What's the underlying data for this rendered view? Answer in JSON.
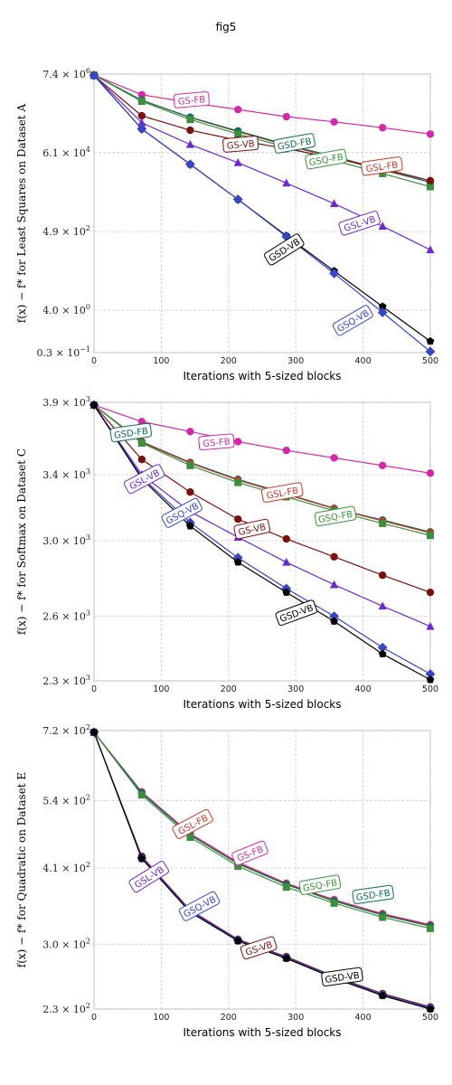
{
  "figure_title": "fig5",
  "chart_data": [
    {
      "type": "line",
      "title": "",
      "xlabel": "Iterations with 5-sized blocks",
      "ylabel": "f(x) − f* for Least Squares on Dataset A",
      "ylog": true,
      "xlim": [
        0,
        500
      ],
      "ylim": [
        0.3,
        7400000.0
      ],
      "x_ticks": [
        0,
        100,
        200,
        300,
        400,
        500
      ],
      "y_ticks": [
        {
          "value": 7400000.0,
          "mant": "7.4",
          "exp": "6"
        },
        {
          "value": 61000.0,
          "mant": "6.1",
          "exp": "4"
        },
        {
          "value": 490.0,
          "mant": "4.9",
          "exp": "2"
        },
        {
          "value": 4.0,
          "mant": "4.0",
          "exp": "0"
        },
        {
          "value": 0.3,
          "mant": "0.3",
          "exp": "−1"
        }
      ],
      "series": [
        {
          "name": "GS-FB",
          "color": "#d12aa6",
          "marker": "circle",
          "x": [
            0,
            71,
            143,
            214,
            286,
            357,
            429,
            500
          ],
          "y": [
            7000000.0,
            2100000.0,
            1300000.0,
            850000.0,
            550000.0,
            400000.0,
            280000.0,
            190000.0
          ]
        },
        {
          "name": "GSL-FB",
          "color": "#c0392b",
          "marker": "circle",
          "x": [
            0,
            71,
            143,
            214,
            286,
            357,
            429,
            500
          ],
          "y": [
            7000000.0,
            1500000.0,
            520000.0,
            220000.0,
            95000.0,
            45000.0,
            21000.0,
            10000.0
          ]
        },
        {
          "name": "GSD-FB",
          "color": "#0f6b5a",
          "marker": "circle",
          "x": [
            0,
            71,
            143,
            214,
            286,
            357,
            429,
            500
          ],
          "y": [
            7000000.0,
            1500000.0,
            530000.0,
            230000.0,
            100000.0,
            48000.0,
            22000.0,
            10000.0
          ]
        },
        {
          "name": "GSQ-FB",
          "color": "#3d8f3d",
          "marker": "square",
          "x": [
            0,
            71,
            143,
            214,
            286,
            357,
            429,
            500
          ],
          "y": [
            7000000.0,
            1400000.0,
            460000.0,
            190000.0,
            85000.0,
            38000.0,
            17000.0,
            7600.0
          ]
        },
        {
          "name": "GS-VB",
          "color": "#7a1010",
          "marker": "circle",
          "x": [
            0,
            71,
            143,
            214,
            286,
            357,
            429,
            500
          ],
          "y": [
            6800000.0,
            580000.0,
            240000.0,
            130000.0,
            78000.0,
            44000.0,
            23000.0,
            11000.0
          ]
        },
        {
          "name": "GSL-VB",
          "color": "#6c2bc9",
          "marker": "triangle",
          "x": [
            0,
            71,
            143,
            214,
            286,
            357,
            429,
            500
          ],
          "y": [
            6800000.0,
            380000.0,
            100000.0,
            33000.0,
            9500.0,
            2700.0,
            680.0,
            160.0
          ]
        },
        {
          "name": "GSD-VB",
          "color": "#000000",
          "marker": "pentagon",
          "x": [
            0,
            71,
            143,
            214,
            286,
            357,
            429,
            500
          ],
          "y": [
            6800000.0,
            260000.0,
            30000.0,
            3500.0,
            380.0,
            44.0,
            5.0,
            0.6
          ]
        },
        {
          "name": "GSQ-VB",
          "color": "#3946c4",
          "marker": "diamond",
          "x": [
            0,
            71,
            143,
            214,
            286,
            357,
            429,
            500
          ],
          "y": [
            6800000.0,
            260000.0,
            30000.0,
            3500.0,
            360.0,
            38.0,
            3.5,
            0.32
          ]
        }
      ],
      "labels": [
        {
          "text": "GS-FB",
          "series": "GS-FB",
          "x": 145,
          "y": 1500000.0,
          "angle": -5
        },
        {
          "text": "GSD-FB",
          "series": "GSD-FB",
          "x": 298,
          "y": 105000.0,
          "angle": -10
        },
        {
          "text": "GSQ-FB",
          "series": "GSQ-FB",
          "x": 345,
          "y": 40000.0,
          "angle": -10
        },
        {
          "text": "GSL-FB",
          "series": "GSL-FB",
          "x": 428,
          "y": 26000.0,
          "angle": -8
        },
        {
          "text": "GS-VB",
          "series": "GS-VB",
          "x": 218,
          "y": 100000.0,
          "angle": -5
        },
        {
          "text": "GSL-VB",
          "series": "GSL-VB",
          "x": 395,
          "y": 800.0,
          "angle": -18
        },
        {
          "text": "GSD-VB",
          "series": "GSD-VB",
          "x": 283,
          "y": 160.0,
          "angle": -32
        },
        {
          "text": "GSQ-VB",
          "series": "GSQ-VB",
          "x": 385,
          "y": 2.1,
          "angle": -30
        }
      ]
    },
    {
      "type": "line",
      "title": "",
      "xlabel": "Iterations with 5-sized blocks",
      "ylabel": "f(x) − f* for Softmax on Dataset C",
      "ylog": true,
      "xlim": [
        0,
        500
      ],
      "ylim": [
        2300,
        3900
      ],
      "x_ticks": [
        0,
        100,
        200,
        300,
        400,
        500
      ],
      "y_ticks": [
        {
          "value": 3900,
          "mant": "3.9",
          "exp": "3"
        },
        {
          "value": 3400,
          "mant": "3.4",
          "exp": "3"
        },
        {
          "value": 3000,
          "mant": "3.0",
          "exp": "3"
        },
        {
          "value": 2600,
          "mant": "2.6",
          "exp": "3"
        },
        {
          "value": 2300,
          "mant": "2.3",
          "exp": "3"
        }
      ],
      "series": [
        {
          "name": "GS-FB",
          "color": "#d12aa6",
          "marker": "circle",
          "x": [
            0,
            71,
            143,
            214,
            286,
            357,
            429,
            500
          ],
          "y": [
            3880,
            3760,
            3690,
            3620,
            3560,
            3510,
            3460,
            3410
          ]
        },
        {
          "name": "GSD-FB",
          "color": "#0f6b5a",
          "marker": "circle",
          "x": [
            0,
            71,
            143,
            214,
            286,
            357,
            429,
            500
          ],
          "y": [
            3880,
            3620,
            3480,
            3370,
            3280,
            3190,
            3120,
            3050
          ]
        },
        {
          "name": "GSL-FB",
          "color": "#c0392b",
          "marker": "circle",
          "x": [
            0,
            71,
            143,
            214,
            286,
            357,
            429,
            500
          ],
          "y": [
            3880,
            3615,
            3475,
            3365,
            3275,
            3188,
            3115,
            3045
          ]
        },
        {
          "name": "GSQ-FB",
          "color": "#3d8f3d",
          "marker": "square",
          "x": [
            0,
            71,
            143,
            214,
            286,
            357,
            429,
            500
          ],
          "y": [
            3880,
            3610,
            3460,
            3350,
            3260,
            3175,
            3100,
            3030
          ]
        },
        {
          "name": "GS-VB",
          "color": "#7a1010",
          "marker": "circle",
          "x": [
            0,
            71,
            143,
            214,
            286,
            357,
            429,
            500
          ],
          "y": [
            3880,
            3500,
            3290,
            3125,
            3010,
            2910,
            2810,
            2720
          ]
        },
        {
          "name": "GSL-VB",
          "color": "#6c2bc9",
          "marker": "triangle",
          "x": [
            0,
            71,
            143,
            214,
            286,
            357,
            429,
            500
          ],
          "y": [
            3880,
            3400,
            3170,
            3020,
            2880,
            2760,
            2650,
            2550
          ]
        },
        {
          "name": "GSQ-VB",
          "color": "#3946c4",
          "marker": "diamond",
          "x": [
            0,
            71,
            143,
            214,
            286,
            357,
            429,
            500
          ],
          "y": [
            3880,
            3385,
            3105,
            2905,
            2740,
            2600,
            2450,
            2330
          ]
        },
        {
          "name": "GSD-VB",
          "color": "#000000",
          "marker": "pentagon",
          "x": [
            0,
            71,
            143,
            214,
            286,
            357,
            429,
            500
          ],
          "y": [
            3880,
            3375,
            3085,
            2880,
            2720,
            2575,
            2420,
            2305
          ]
        }
      ],
      "labels": [
        {
          "text": "GSD-FB",
          "series": "GSD-FB",
          "x": 55,
          "y": 3680,
          "angle": -8
        },
        {
          "text": "GS-FB",
          "series": "GS-FB",
          "x": 182,
          "y": 3615,
          "angle": -5
        },
        {
          "text": "GSL-VB",
          "series": "GSL-VB",
          "x": 75,
          "y": 3370,
          "angle": -28
        },
        {
          "text": "GSQ-VB",
          "series": "GSQ-VB",
          "x": 131,
          "y": 3160,
          "angle": -28
        },
        {
          "text": "GSL-FB",
          "series": "GSL-FB",
          "x": 280,
          "y": 3285,
          "angle": -10
        },
        {
          "text": "GS-VB",
          "series": "GS-VB",
          "x": 235,
          "y": 3065,
          "angle": -12
        },
        {
          "text": "GSQ-FB",
          "series": "GSQ-FB",
          "x": 359,
          "y": 3140,
          "angle": -10
        },
        {
          "text": "GSD-VB",
          "series": "GSD-VB",
          "x": 301,
          "y": 2615,
          "angle": -20
        }
      ]
    },
    {
      "type": "line",
      "title": "",
      "xlabel": "Iterations with 5-sized blocks",
      "ylabel": "f(x) − f* for Quadratic on Dataset E",
      "ylog": true,
      "xlim": [
        0,
        500
      ],
      "ylim": [
        230,
        720
      ],
      "x_ticks": [
        0,
        100,
        200,
        300,
        400,
        500
      ],
      "y_ticks": [
        {
          "value": 720,
          "mant": "7.2",
          "exp": "2"
        },
        {
          "value": 540,
          "mant": "5.4",
          "exp": "2"
        },
        {
          "value": 410,
          "mant": "4.1",
          "exp": "2"
        },
        {
          "value": 300,
          "mant": "3.0",
          "exp": "2"
        },
        {
          "value": 230,
          "mant": "2.3",
          "exp": "2"
        }
      ],
      "series": [
        {
          "name": "GS-FB",
          "color": "#d12aa6",
          "marker": "circle",
          "x": [
            0,
            71,
            143,
            214,
            286,
            357,
            429,
            500
          ],
          "y": [
            715,
            560,
            472,
            420,
            385,
            360,
            340,
            325
          ]
        },
        {
          "name": "GSL-FB",
          "color": "#c0392b",
          "marker": "circle",
          "x": [
            0,
            71,
            143,
            214,
            286,
            357,
            429,
            500
          ],
          "y": [
            715,
            558,
            470,
            418,
            384,
            359,
            339,
            324
          ]
        },
        {
          "name": "GSD-FB",
          "color": "#0f6b5a",
          "marker": "circle",
          "x": [
            0,
            71,
            143,
            214,
            286,
            357,
            429,
            500
          ],
          "y": [
            715,
            557,
            469,
            417,
            383,
            358,
            338,
            323
          ]
        },
        {
          "name": "GSQ-FB",
          "color": "#3d8f3d",
          "marker": "square",
          "x": [
            0,
            71,
            143,
            214,
            286,
            357,
            429,
            500
          ],
          "y": [
            715,
            553,
            465,
            413,
            379,
            355,
            335,
            320
          ]
        },
        {
          "name": "GS-VB",
          "color": "#7a1010",
          "marker": "circle",
          "x": [
            0,
            71,
            143,
            214,
            286,
            357,
            429,
            500
          ],
          "y": [
            715,
            430,
            345,
            306,
            285,
            263,
            245,
            232
          ]
        },
        {
          "name": "GSL-VB",
          "color": "#6c2bc9",
          "marker": "triangle",
          "x": [
            0,
            71,
            143,
            214,
            286,
            357,
            429,
            500
          ],
          "y": [
            715,
            428,
            344,
            305,
            284,
            262,
            244,
            231
          ]
        },
        {
          "name": "GSQ-VB",
          "color": "#3946c4",
          "marker": "diamond",
          "x": [
            0,
            71,
            143,
            214,
            286,
            357,
            429,
            500
          ],
          "y": [
            715,
            427,
            343,
            305,
            284,
            262,
            244,
            231
          ]
        },
        {
          "name": "GSD-VB",
          "color": "#000000",
          "marker": "pentagon",
          "x": [
            0,
            71,
            143,
            214,
            286,
            357,
            429,
            500
          ],
          "y": [
            715,
            426,
            342,
            304,
            283,
            261,
            243,
            230
          ]
        }
      ],
      "labels": [
        {
          "text": "GSL-FB",
          "series": "GSL-FB",
          "x": 147,
          "y": 490,
          "angle": -28
        },
        {
          "text": "GS-FB",
          "series": "GS-FB",
          "x": 232,
          "y": 435,
          "angle": -22
        },
        {
          "text": "GSL-VB",
          "series": "GSL-VB",
          "x": 82,
          "y": 395,
          "angle": -32
        },
        {
          "text": "GSQ-VB",
          "series": "GSQ-VB",
          "x": 157,
          "y": 350,
          "angle": -28
        },
        {
          "text": "GS-VB",
          "series": "GS-VB",
          "x": 245,
          "y": 295,
          "angle": -18
        },
        {
          "text": "GSQ-FB",
          "series": "GSQ-FB",
          "x": 336,
          "y": 382,
          "angle": -10
        },
        {
          "text": "GSD-FB",
          "series": "GSD-FB",
          "x": 415,
          "y": 367,
          "angle": -8
        },
        {
          "text": "GSD-VB",
          "series": "GSD-VB",
          "x": 369,
          "y": 262,
          "angle": -8
        }
      ]
    }
  ]
}
